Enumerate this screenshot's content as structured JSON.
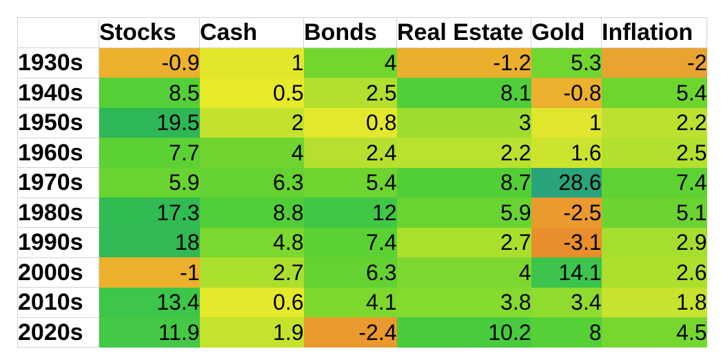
{
  "chart_data": {
    "type": "heatmap",
    "title": "",
    "corner_label": "",
    "columns": [
      "Stocks",
      "Cash",
      "Bonds",
      "Real Estate",
      "Gold",
      "Inflation"
    ],
    "rows": [
      "1930s",
      "1940s",
      "1950s",
      "1960s",
      "1970s",
      "1980s",
      "1990s",
      "2000s",
      "2010s",
      "2020s"
    ],
    "values": [
      [
        -0.9,
        1,
        4,
        -1.2,
        5.3,
        -2
      ],
      [
        8.5,
        0.5,
        2.5,
        8.1,
        -0.8,
        5.4
      ],
      [
        19.5,
        2,
        0.8,
        3,
        1,
        2.2
      ],
      [
        7.7,
        4,
        2.4,
        2.2,
        1.6,
        2.5
      ],
      [
        5.9,
        6.3,
        5.4,
        8.7,
        28.6,
        7.4
      ],
      [
        17.3,
        8.8,
        12,
        5.9,
        -2.5,
        5.1
      ],
      [
        18,
        4.8,
        7.4,
        2.7,
        -3.1,
        2.9
      ],
      [
        -1,
        2.7,
        6.3,
        4,
        14.1,
        2.6
      ],
      [
        13.4,
        0.6,
        4.1,
        3.8,
        3.4,
        1.8
      ],
      [
        11.9,
        1.9,
        -2.4,
        10.2,
        8,
        4.5
      ]
    ],
    "cell_colors": [
      [
        "#ecb22d",
        "#e3e72c",
        "#72d62f",
        "#ebae2d",
        "#70d630",
        "#e9a330"
      ],
      [
        "#54cf37",
        "#e7e92b",
        "#b2e02e",
        "#50ce39",
        "#ebb02e",
        "#6ed52f"
      ],
      [
        "#2eb757",
        "#c3e22e",
        "#e4e82c",
        "#9edd2e",
        "#e0e62d",
        "#bce12e"
      ],
      [
        "#5cd134",
        "#70d530",
        "#b5e02f",
        "#b9e12f",
        "#cde42e",
        "#b2e02f"
      ],
      [
        "#68d431",
        "#64d233",
        "#6ed42f",
        "#52cf36",
        "#29a47d",
        "#5ed233"
      ],
      [
        "#31bb53",
        "#50ce38",
        "#41c746",
        "#68d431",
        "#ea9a2e",
        "#6bd431"
      ],
      [
        "#30b954",
        "#7bd82f",
        "#5bd134",
        "#abdf2e",
        "#e88e2c",
        "#a6de2f"
      ],
      [
        "#ebb12c",
        "#abdf2e",
        "#64d233",
        "#7cd830",
        "#3cc44c",
        "#addf2e"
      ],
      [
        "#3dc64a",
        "#e5e92c",
        "#7ed92f",
        "#85da2e",
        "#90dc2e",
        "#c8e32d"
      ],
      [
        "#44c845",
        "#c5e22d",
        "#e9992d",
        "#49cb3e",
        "#55d036",
        "#76d730"
      ]
    ],
    "legend": "none",
    "grid_line_color": "#d2d2d2",
    "text_color": "#000000",
    "background_color": "#ffffff",
    "extreme_high_color": "#29a47d",
    "extreme_low_color": "#e88e2c"
  }
}
